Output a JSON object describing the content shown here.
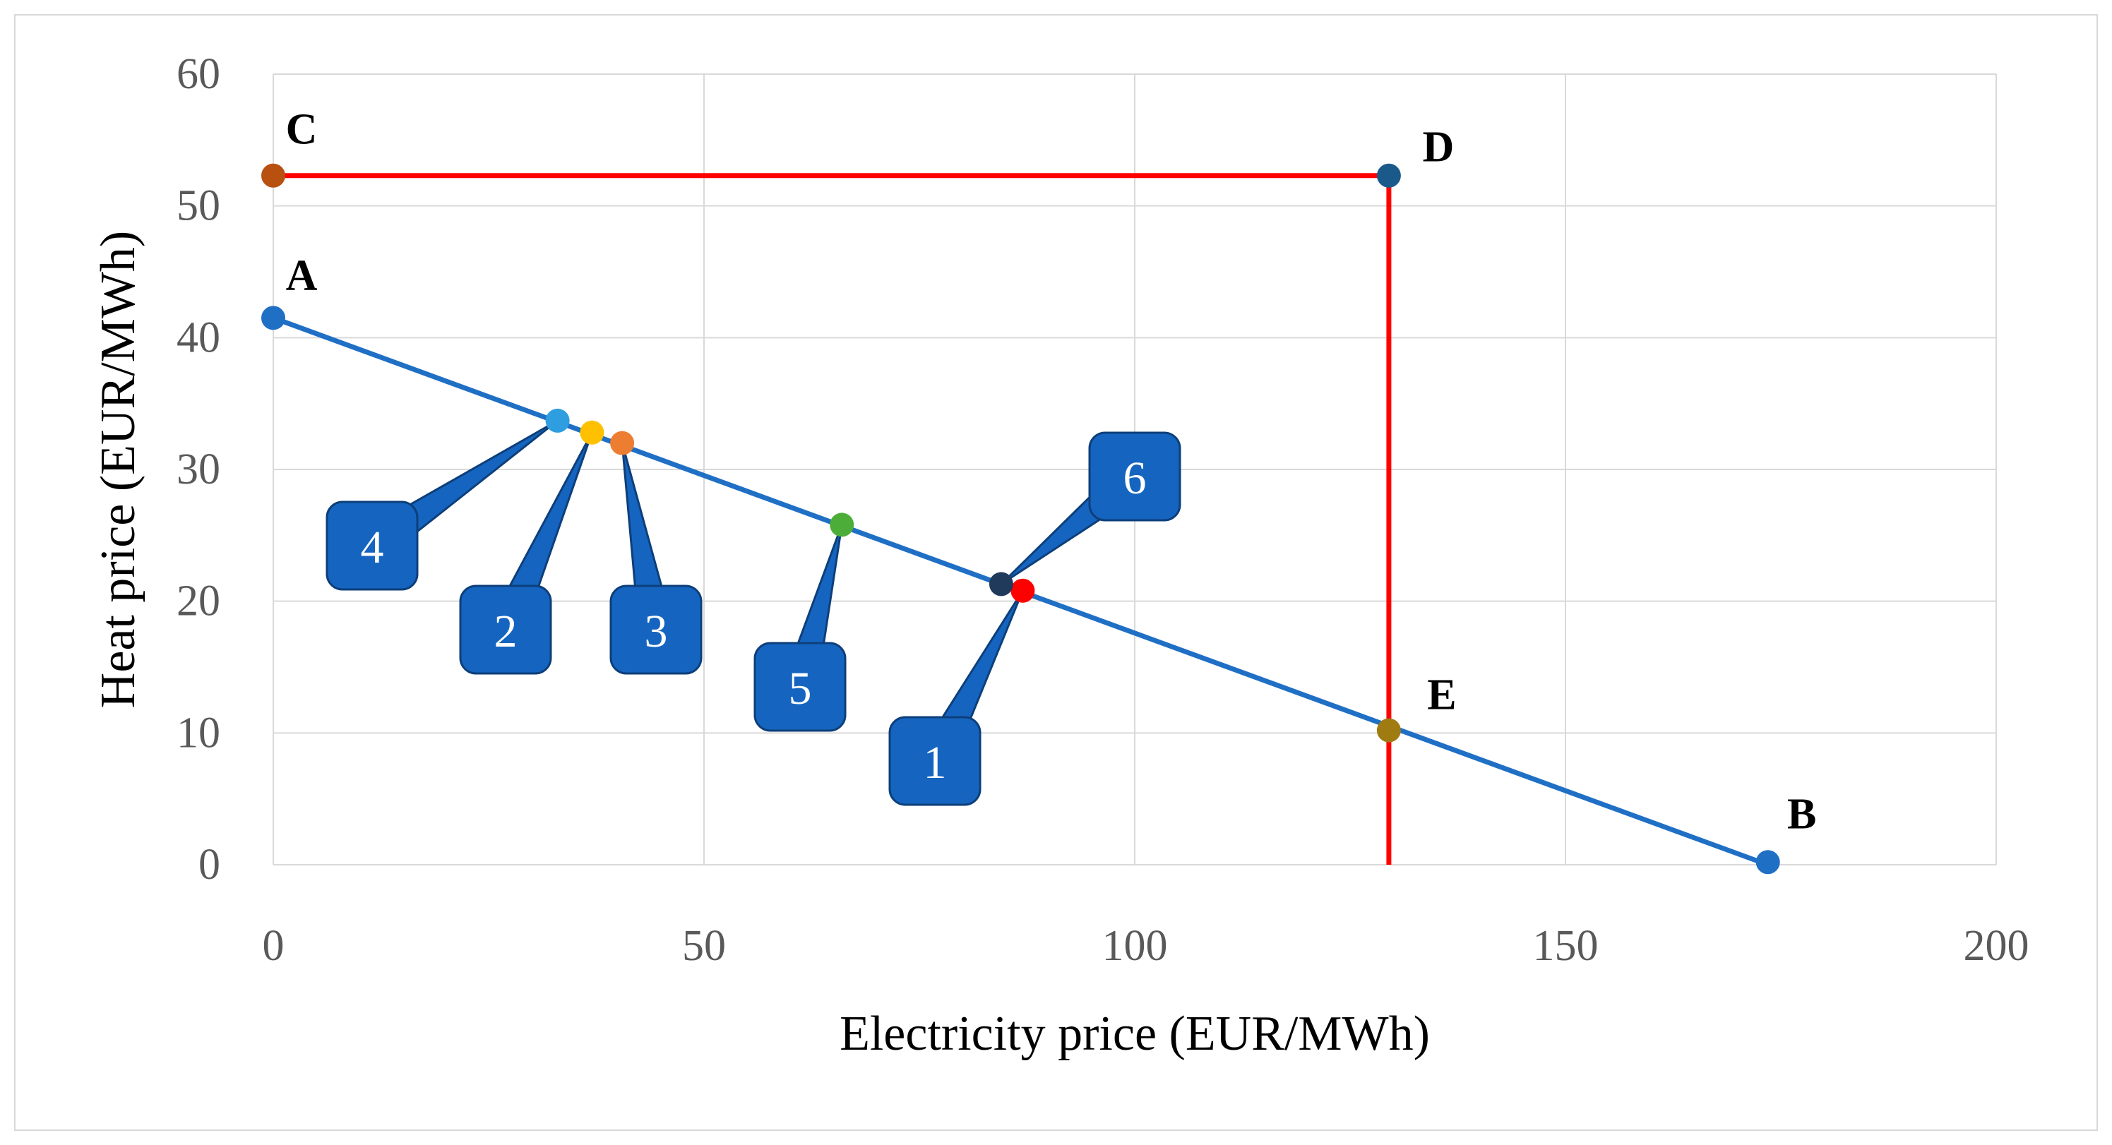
{
  "chart_data": {
    "type": "scatter",
    "xlabel": "Electricity price (EUR/MWh)",
    "ylabel": "Heat price (EUR/MWh)",
    "xlim": [
      0,
      200
    ],
    "ylim": [
      0,
      60
    ],
    "xticks": [
      "0",
      "50",
      "100",
      "150",
      "200"
    ],
    "yticks": [
      "0",
      "10",
      "20",
      "30",
      "40",
      "50",
      "60"
    ],
    "grid": true,
    "legend": "none",
    "lines": [
      {
        "from": [
          0,
          41.5
        ],
        "to": [
          173.5,
          0
        ],
        "color": "#1f6fc5"
      },
      {
        "from": [
          0,
          52.3
        ],
        "to": [
          129.5,
          52.3
        ],
        "color": "#ff0000"
      },
      {
        "from": [
          129.5,
          52.3
        ],
        "to": [
          129.5,
          0
        ],
        "color": "#ff0000"
      }
    ],
    "labeled_points": [
      {
        "label": "A",
        "x": 0,
        "y": 41.5,
        "color": "#1f6fc5"
      },
      {
        "label": "B",
        "x": 173.5,
        "y": 0.2,
        "color": "#1f6fc5"
      },
      {
        "label": "C",
        "x": 0,
        "y": 52.3,
        "color": "#b8500f"
      },
      {
        "label": "D",
        "x": 129.5,
        "y": 52.3,
        "color": "#1a5a8a"
      },
      {
        "label": "E",
        "x": 129.5,
        "y": 10.2,
        "color": "#a07b12"
      }
    ],
    "numbered_points": [
      {
        "label": "1",
        "x": 87,
        "y": 20.8,
        "color": "#ff0000"
      },
      {
        "label": "2",
        "x": 37,
        "y": 32.8,
        "color": "#ffc000"
      },
      {
        "label": "3",
        "x": 40.5,
        "y": 32,
        "color": "#ed7d31"
      },
      {
        "label": "4",
        "x": 33,
        "y": 33.7,
        "color": "#2e9ee0"
      },
      {
        "label": "5",
        "x": 66,
        "y": 25.8,
        "color": "#4cae38"
      },
      {
        "label": "6",
        "x": 84.5,
        "y": 21.3,
        "color": "#203a5c"
      }
    ]
  }
}
